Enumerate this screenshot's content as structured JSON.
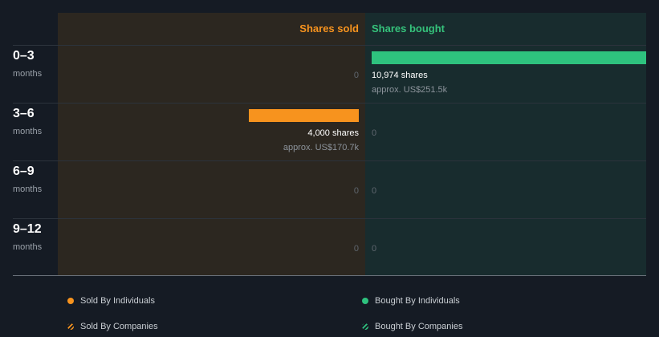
{
  "chart_data": {
    "type": "bar",
    "title": "",
    "column_headers": {
      "sold": "Shares sold",
      "bought": "Shares bought"
    },
    "categories": [
      {
        "label": "0–3",
        "sub": "months"
      },
      {
        "label": "3–6",
        "sub": "months"
      },
      {
        "label": "6–9",
        "sub": "months"
      },
      {
        "label": "9–12",
        "sub": "months"
      }
    ],
    "series": [
      {
        "name": "Shares sold",
        "color": "#f7931e",
        "values": [
          0,
          4000,
          0,
          0
        ],
        "value_labels": [
          "0",
          "4,000 shares",
          "0",
          "0"
        ],
        "approx_labels": [
          "",
          "approx. US$170.7k",
          "",
          ""
        ]
      },
      {
        "name": "Shares bought",
        "color": "#2ec27e",
        "values": [
          10974,
          0,
          0,
          0
        ],
        "value_labels": [
          "10,974 shares",
          "0",
          "0",
          "0"
        ],
        "approx_labels": [
          "approx. US$251.5k",
          "",
          "",
          ""
        ]
      }
    ],
    "xlim": [
      0,
      10974
    ],
    "legend": [
      {
        "text": "Sold By Individuals",
        "color": "#f7931e",
        "style": "solid"
      },
      {
        "text": "Bought By Individuals",
        "color": "#2ec27e",
        "style": "solid"
      },
      {
        "text": "Sold By Companies",
        "color": "#f7931e",
        "style": "hatched"
      },
      {
        "text": "Bought By Companies",
        "color": "#2ec27e",
        "style": "hatched"
      }
    ],
    "legend_placement": "bottom"
  }
}
